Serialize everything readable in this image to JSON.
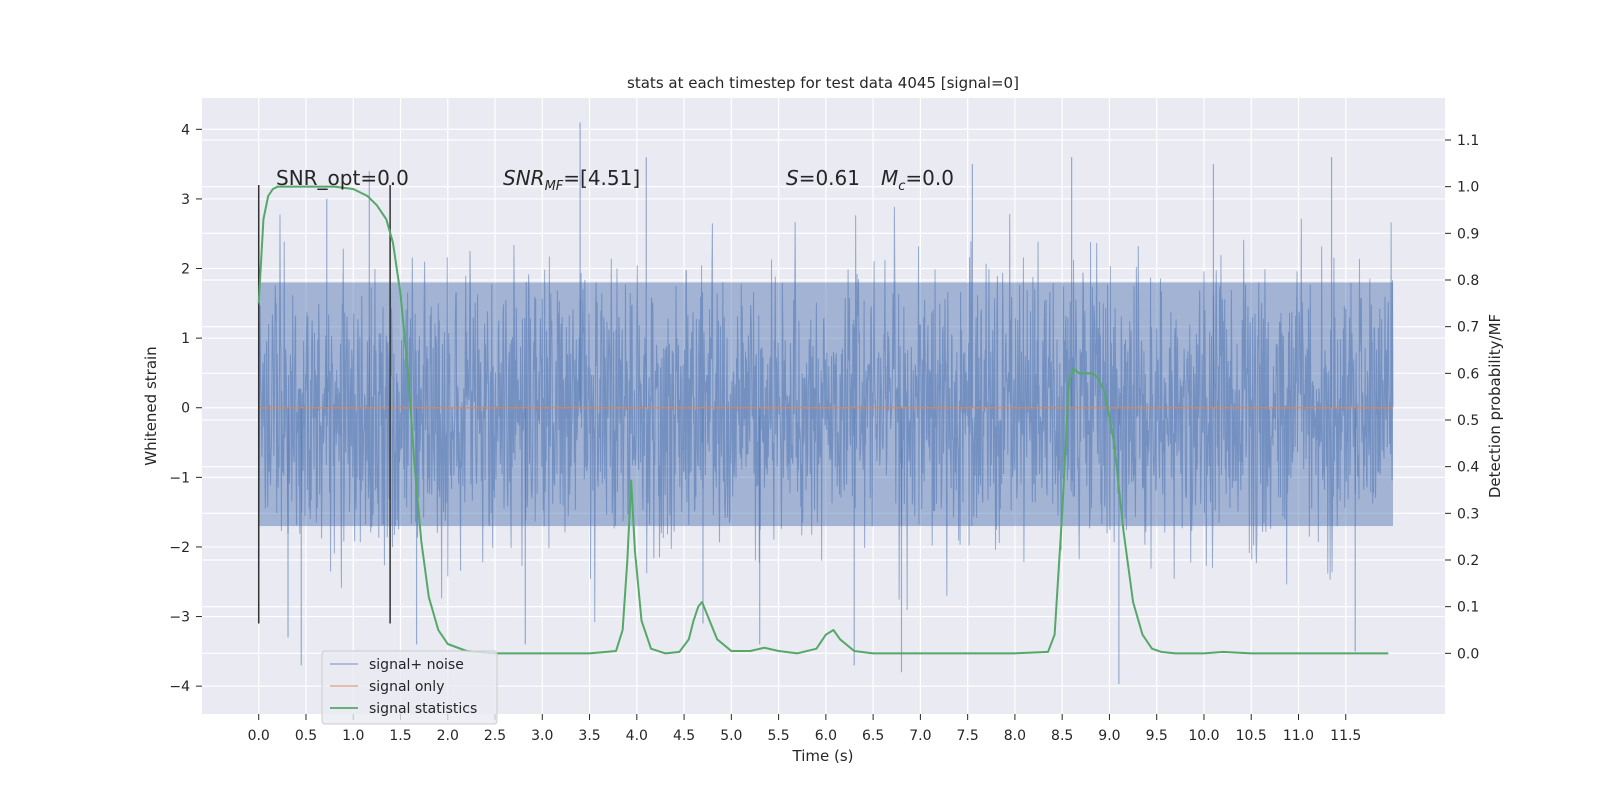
{
  "chart_data": {
    "type": "line",
    "title": "stats at each timestep for test data 4045 [signal=0]",
    "xlabel": "Time (s)",
    "ylabel": "Whitened strain",
    "y2label": "Detection probability/MF",
    "xlim": [
      -0.6,
      12.55
    ],
    "ylim": [
      -4.4,
      4.45
    ],
    "y2lim": [
      -0.13,
      1.19
    ],
    "xticks": [
      "0.0",
      "0.5",
      "1.0",
      "1.5",
      "2.0",
      "2.5",
      "3.0",
      "3.5",
      "4.0",
      "4.5",
      "5.0",
      "5.5",
      "6.0",
      "6.5",
      "7.0",
      "7.5",
      "8.0",
      "8.5",
      "9.0",
      "9.5",
      "10.0",
      "10.5",
      "11.0",
      "11.5"
    ],
    "yticks": [
      "4",
      "3",
      "2",
      "1",
      "0",
      "−1",
      "−2",
      "−3",
      "−4"
    ],
    "y2ticks": [
      "1.1",
      "1.0",
      "0.9",
      "0.8",
      "0.7",
      "0.6",
      "0.5",
      "0.4",
      "0.3",
      "0.2",
      "0.1",
      "0.0"
    ],
    "grid": true,
    "legend_position": "lower-left",
    "colors": {
      "background": "#EAEAF2",
      "grid": "#FFFFFF",
      "noise": "#4C72B0",
      "signal_only": "#DD8452",
      "statistics": "#55A868",
      "marker": "#333333"
    },
    "series": [
      {
        "name": "signal+ noise",
        "description_values": "dense whitened strain time series, 0 to 12 s, band mostly within -2 to 2",
        "x_range": [
          0.0,
          12.0
        ],
        "core_range": [
          -1.7,
          1.8
        ],
        "extremes_sample": [
          {
            "x": 0.31,
            "y": -3.3
          },
          {
            "x": 0.45,
            "y": -3.7
          },
          {
            "x": 0.72,
            "y": 3.0
          },
          {
            "x": 1.17,
            "y": 3.4
          },
          {
            "x": 1.67,
            "y": -3.4
          },
          {
            "x": 2.82,
            "y": -3.4
          },
          {
            "x": 3.4,
            "y": 4.1
          },
          {
            "x": 4.1,
            "y": 3.6
          },
          {
            "x": 4.7,
            "y": -3.1
          },
          {
            "x": 5.3,
            "y": -3.4
          },
          {
            "x": 6.3,
            "y": -3.7
          },
          {
            "x": 6.8,
            "y": -3.8
          },
          {
            "x": 7.55,
            "y": 3.5
          },
          {
            "x": 8.6,
            "y": 3.6
          },
          {
            "x": 9.1,
            "y": -3.97
          },
          {
            "x": 10.1,
            "y": 3.5
          },
          {
            "x": 11.35,
            "y": 3.6
          },
          {
            "x": 11.6,
            "y": -3.5
          }
        ]
      },
      {
        "name": "signal only",
        "x": [
          0.0,
          12.0
        ],
        "y": [
          0.0,
          0.0
        ]
      },
      {
        "name": "signal statistics",
        "axis": "right",
        "x": [
          0.0,
          0.05,
          0.1,
          0.15,
          0.2,
          0.3,
          0.45,
          0.6,
          0.8,
          1.0,
          1.15,
          1.25,
          1.35,
          1.42,
          1.5,
          1.58,
          1.65,
          1.72,
          1.8,
          1.9,
          2.0,
          2.2,
          2.5,
          3.0,
          3.5,
          3.78,
          3.85,
          3.9,
          3.94,
          3.98,
          4.05,
          4.15,
          4.3,
          4.45,
          4.55,
          4.6,
          4.65,
          4.69,
          4.75,
          4.85,
          5.0,
          5.2,
          5.35,
          5.5,
          5.7,
          5.9,
          6.0,
          6.08,
          6.15,
          6.3,
          6.5,
          7.0,
          7.5,
          8.0,
          8.35,
          8.42,
          8.5,
          8.57,
          8.62,
          8.68,
          8.75,
          8.82,
          8.88,
          8.95,
          9.05,
          9.15,
          9.25,
          9.35,
          9.45,
          9.55,
          9.7,
          10.0,
          10.2,
          10.5,
          11.0,
          11.5,
          11.95
        ],
        "y": [
          0.75,
          0.93,
          0.98,
          0.995,
          1.0,
          1.0,
          1.0,
          1.0,
          1.0,
          0.995,
          0.98,
          0.96,
          0.93,
          0.88,
          0.77,
          0.6,
          0.4,
          0.24,
          0.12,
          0.05,
          0.02,
          0.005,
          0.0,
          0.0,
          0.0,
          0.005,
          0.05,
          0.2,
          0.37,
          0.22,
          0.07,
          0.01,
          0.0,
          0.003,
          0.03,
          0.07,
          0.1,
          0.11,
          0.08,
          0.03,
          0.005,
          0.005,
          0.012,
          0.005,
          0.0,
          0.01,
          0.04,
          0.05,
          0.03,
          0.005,
          0.0,
          0.0,
          0.0,
          0.0,
          0.003,
          0.04,
          0.3,
          0.58,
          0.61,
          0.6,
          0.6,
          0.6,
          0.59,
          0.56,
          0.45,
          0.26,
          0.11,
          0.04,
          0.01,
          0.003,
          0.0,
          0.0,
          0.003,
          0.0,
          0.0,
          0.0,
          0.0
        ]
      }
    ],
    "vertical_markers": [
      {
        "x": 0.0,
        "y_from": -3.1,
        "y_to": 3.2
      },
      {
        "x": 1.39,
        "y_from": -3.1,
        "y_to": 3.2
      }
    ],
    "annotations": {
      "snr_opt": "SNR_opt=0.0",
      "snr_mf_main": "SNR",
      "snr_mf_sub": "MF",
      "snr_mf_value": "=[4.51]",
      "s_symbol": "S",
      "s_value": "=0.61",
      "mc_main": "M",
      "mc_sub": "c",
      "mc_value": "=0.0"
    },
    "legend": [
      "signal+ noise",
      "signal only",
      "signal statistics"
    ]
  }
}
